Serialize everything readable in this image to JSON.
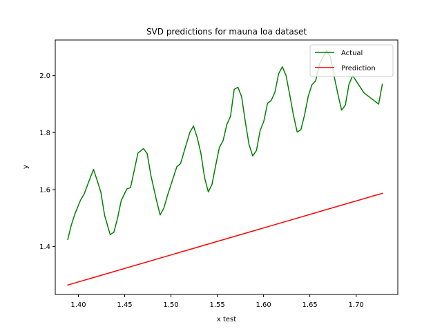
{
  "chart_data": {
    "type": "line",
    "title": "SVD predictions for mauna loa dataset",
    "xlabel": "x test",
    "ylabel": "y",
    "xlim": [
      1.375,
      1.745
    ],
    "ylim": [
      1.232,
      2.125
    ],
    "xticks": [
      1.4,
      1.45,
      1.5,
      1.55,
      1.6,
      1.65,
      1.7
    ],
    "xtick_labels": [
      "1.40",
      "1.45",
      "1.50",
      "1.55",
      "1.60",
      "1.65",
      "1.70"
    ],
    "yticks": [
      1.4,
      1.6,
      1.8,
      2.0
    ],
    "ytick_labels": [
      "1.4",
      "1.6",
      "1.8",
      "2.0"
    ],
    "grid": false,
    "legend_position": "upper right",
    "series": [
      {
        "name": "Actual",
        "color": "#008000",
        "x": [
          1.3885,
          1.3923,
          1.3963,
          1.4023,
          1.4063,
          1.4103,
          1.4163,
          1.4203,
          1.4243,
          1.4283,
          1.4343,
          1.4383,
          1.4423,
          1.4463,
          1.4523,
          1.4563,
          1.4603,
          1.4643,
          1.4703,
          1.4743,
          1.4783,
          1.4843,
          1.4883,
          1.4923,
          1.4963,
          1.5023,
          1.5063,
          1.5103,
          1.5143,
          1.5203,
          1.5243,
          1.5283,
          1.5323,
          1.5363,
          1.5403,
          1.5443,
          1.5483,
          1.5523,
          1.5563,
          1.5603,
          1.5643,
          1.5683,
          1.5723,
          1.5763,
          1.5803,
          1.5843,
          1.5883,
          1.5923,
          1.5963,
          1.6003,
          1.6043,
          1.6083,
          1.6123,
          1.6163,
          1.6203,
          1.6243,
          1.6283,
          1.6323,
          1.6363,
          1.6403,
          1.6443,
          1.6483,
          1.6523,
          1.6563,
          1.6603,
          1.6643,
          1.6683,
          1.6723,
          1.6763,
          1.6803,
          1.6843,
          1.6883,
          1.6923,
          1.6963,
          1.7003,
          1.7043,
          1.7083,
          1.7123,
          1.7163,
          1.7203,
          1.7243,
          1.7283
        ],
        "y": [
          1.425,
          1.475,
          1.515,
          1.563,
          1.585,
          1.62,
          1.671,
          1.632,
          1.59,
          1.51,
          1.442,
          1.45,
          1.5,
          1.562,
          1.602,
          1.607,
          1.667,
          1.728,
          1.744,
          1.726,
          1.65,
          1.563,
          1.511,
          1.535,
          1.58,
          1.64,
          1.68,
          1.691,
          1.735,
          1.8,
          1.823,
          1.783,
          1.728,
          1.642,
          1.592,
          1.618,
          1.685,
          1.748,
          1.772,
          1.828,
          1.857,
          1.952,
          1.959,
          1.926,
          1.838,
          1.758,
          1.718,
          1.737,
          1.807,
          1.84,
          1.903,
          1.913,
          1.942,
          2.007,
          2.031,
          2.0,
          1.932,
          1.861,
          1.802,
          1.81,
          1.862,
          1.928,
          1.968,
          1.982,
          2.039,
          2.066,
          2.088,
          2.064,
          1.997,
          1.935,
          1.879,
          1.896,
          1.97,
          2.0,
          1.98,
          1.96,
          1.94,
          1.93,
          1.92,
          1.91,
          1.9,
          1.97
        ]
      },
      {
        "name": "Prediction",
        "color": "#ff0000",
        "x": [
          1.3885,
          1.7283
        ],
        "y": [
          1.265,
          1.587
        ]
      }
    ]
  }
}
